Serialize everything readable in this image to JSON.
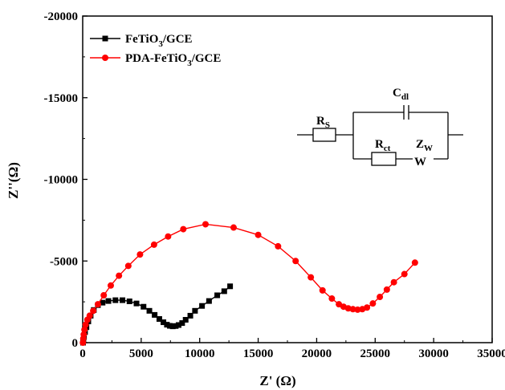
{
  "chart_data": {
    "type": "scatter",
    "xlabel": "Z' (Ω)",
    "ylabel": "Z''(Ω)",
    "xlim": [
      0,
      35000
    ],
    "ylim": [
      -20000,
      0
    ],
    "y_axis_inverted": true,
    "x_ticks": [
      "0",
      "5000",
      "10000",
      "15000",
      "20000",
      "25000",
      "30000",
      "35000"
    ],
    "y_ticks": [
      "0",
      "-5000",
      "-10000",
      "-15000",
      "-20000"
    ],
    "legend_position": "top-left",
    "grid": false,
    "series": [
      {
        "name": "FeTiO3/GCE",
        "legend_main": "FeTiO",
        "legend_sub": "3",
        "legend_tail": "/GCE",
        "color": "#000000",
        "marker": "square",
        "points": [
          [
            30,
            0
          ],
          [
            60,
            -150
          ],
          [
            110,
            -350
          ],
          [
            200,
            -650
          ],
          [
            320,
            -950
          ],
          [
            480,
            -1300
          ],
          [
            680,
            -1650
          ],
          [
            950,
            -2000
          ],
          [
            1300,
            -2300
          ],
          [
            1700,
            -2450
          ],
          [
            2200,
            -2550
          ],
          [
            2800,
            -2600
          ],
          [
            3400,
            -2600
          ],
          [
            4000,
            -2530
          ],
          [
            4600,
            -2400
          ],
          [
            5200,
            -2200
          ],
          [
            5700,
            -1950
          ],
          [
            6150,
            -1700
          ],
          [
            6550,
            -1450
          ],
          [
            6900,
            -1250
          ],
          [
            7200,
            -1100
          ],
          [
            7450,
            -1030
          ],
          [
            7700,
            -1000
          ],
          [
            7950,
            -1020
          ],
          [
            8200,
            -1080
          ],
          [
            8500,
            -1200
          ],
          [
            8800,
            -1400
          ],
          [
            9200,
            -1650
          ],
          [
            9600,
            -1950
          ],
          [
            10200,
            -2250
          ],
          [
            10800,
            -2550
          ],
          [
            11500,
            -2900
          ],
          [
            12100,
            -3150
          ],
          [
            12600,
            -3450
          ]
        ]
      },
      {
        "name": "PDA-FeTiO3/GCE",
        "legend_main": "PDA-FeTiO",
        "legend_sub": "3",
        "legend_tail": "/GCE",
        "color": "#ff0000",
        "marker": "circle",
        "points": [
          [
            20,
            0
          ],
          [
            50,
            -250
          ],
          [
            90,
            -500
          ],
          [
            150,
            -800
          ],
          [
            250,
            -1100
          ],
          [
            400,
            -1400
          ],
          [
            600,
            -1650
          ],
          [
            900,
            -1950
          ],
          [
            1300,
            -2350
          ],
          [
            1800,
            -2900
          ],
          [
            2400,
            -3500
          ],
          [
            3100,
            -4100
          ],
          [
            3900,
            -4700
          ],
          [
            4900,
            -5400
          ],
          [
            6100,
            -6000
          ],
          [
            7300,
            -6500
          ],
          [
            8600,
            -6950
          ],
          [
            10500,
            -7250
          ],
          [
            12900,
            -7050
          ],
          [
            15000,
            -6600
          ],
          [
            16700,
            -5900
          ],
          [
            18200,
            -5000
          ],
          [
            19500,
            -4000
          ],
          [
            20500,
            -3200
          ],
          [
            21300,
            -2700
          ],
          [
            21900,
            -2350
          ],
          [
            22300,
            -2200
          ],
          [
            22700,
            -2100
          ],
          [
            23100,
            -2050
          ],
          [
            23500,
            -2020
          ],
          [
            23900,
            -2050
          ],
          [
            24300,
            -2150
          ],
          [
            24800,
            -2400
          ],
          [
            25400,
            -2800
          ],
          [
            26000,
            -3250
          ],
          [
            26600,
            -3700
          ],
          [
            27500,
            -4200
          ],
          [
            28400,
            -4900
          ]
        ]
      }
    ],
    "inset_circuit": {
      "labels": [
        {
          "main": "R",
          "sub": "S"
        },
        {
          "main": "C",
          "sub": "dl"
        },
        {
          "main": "R",
          "sub": "ct"
        },
        {
          "main": "Z",
          "sub": "W"
        },
        {
          "main": "W",
          "sub": ""
        }
      ]
    }
  }
}
